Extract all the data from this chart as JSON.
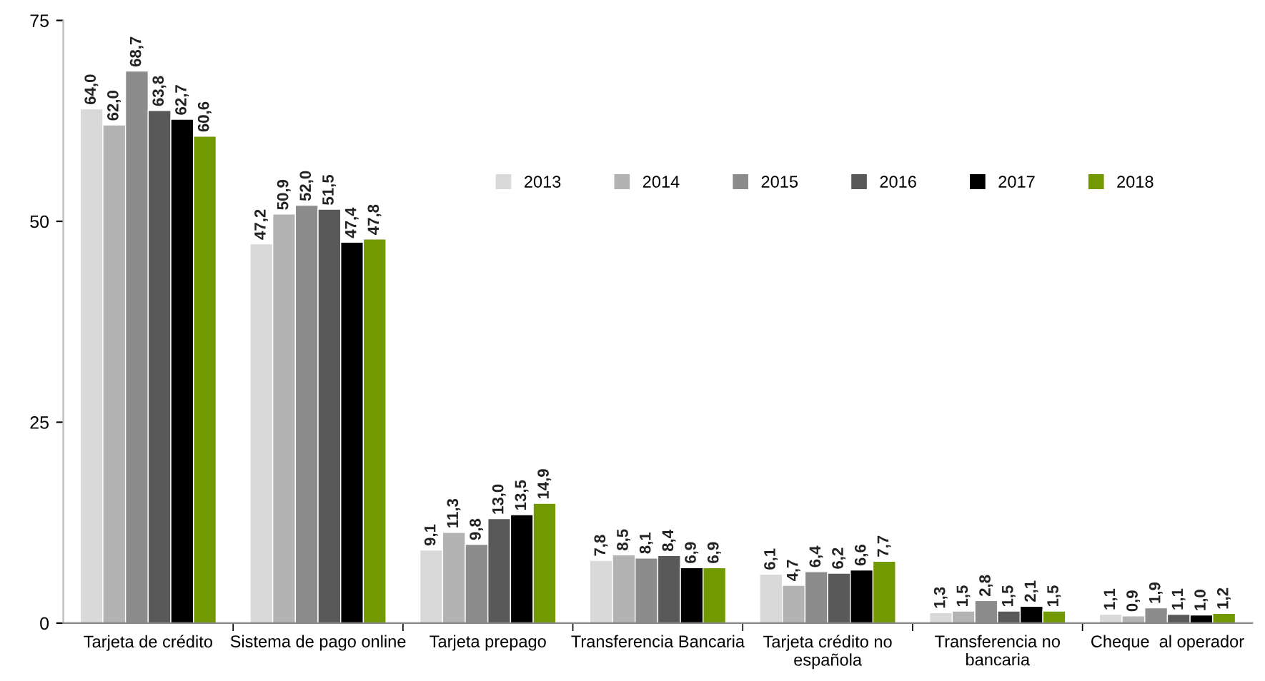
{
  "chart_data": {
    "type": "bar",
    "categories": [
      "Tarjeta de crédito",
      "Sistema de pago online",
      "Tarjeta prepago",
      "Transferencia Bancaria",
      "Tarjeta crédito no española",
      "Transferencia no bancaria",
      "Cheque  al operador"
    ],
    "series": [
      {
        "name": "2013",
        "color": "#d9d9d9",
        "values": [
          64.0,
          47.2,
          9.1,
          7.8,
          6.1,
          1.3,
          1.1
        ],
        "value_labels": [
          "64,0",
          "47,2",
          "9,1",
          "7,8",
          "6,1",
          "1,3",
          "1,1"
        ]
      },
      {
        "name": "2014",
        "color": "#b3b3b3",
        "values": [
          62.0,
          50.9,
          11.3,
          8.5,
          4.7,
          1.5,
          0.9
        ],
        "value_labels": [
          "62,0",
          "50,9",
          "11,3",
          "8,5",
          "4,7",
          "1,5",
          "0,9"
        ]
      },
      {
        "name": "2015",
        "color": "#8c8c8c",
        "values": [
          68.7,
          52.0,
          9.8,
          8.1,
          6.4,
          2.8,
          1.9
        ],
        "value_labels": [
          "68,7",
          "52,0",
          "9,8",
          "8,1",
          "6,4",
          "2,8",
          "1,9"
        ]
      },
      {
        "name": "2016",
        "color": "#595959",
        "values": [
          63.8,
          51.5,
          13.0,
          8.4,
          6.2,
          1.5,
          1.1
        ],
        "value_labels": [
          "63,8",
          "51,5",
          "13,0",
          "8,4",
          "6,2",
          "1,5",
          "1,1"
        ]
      },
      {
        "name": "2017",
        "color": "#000000",
        "values": [
          62.7,
          47.4,
          13.5,
          6.9,
          6.6,
          2.1,
          1.0
        ],
        "value_labels": [
          "62,7",
          "47,4",
          "13,5",
          "6,9",
          "6,6",
          "2,1",
          "1,0"
        ]
      },
      {
        "name": "2018",
        "color": "#739900",
        "values": [
          60.6,
          47.8,
          14.9,
          6.9,
          7.7,
          1.5,
          1.2
        ],
        "value_labels": [
          "60,6",
          "47,8",
          "14,9",
          "6,9",
          "7,7",
          "1,5",
          "1,2"
        ]
      }
    ],
    "ylim": [
      0,
      75
    ],
    "yticks": [
      0,
      25,
      50,
      75
    ],
    "grid": false,
    "legend": "right"
  }
}
